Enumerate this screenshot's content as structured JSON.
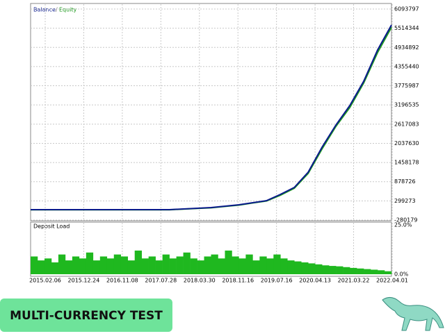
{
  "chart_data": [
    {
      "type": "line",
      "series": [
        {
          "name": "Equity",
          "color": "#1f9a1f",
          "values": [
            30000,
            30000,
            30000,
            30000,
            30000,
            30000,
            30000,
            30000,
            30000,
            30000,
            30000,
            50000,
            70000,
            90000,
            130000,
            170000,
            235000,
            295000,
            470000,
            680000,
            1130000,
            1870000,
            2550000,
            3120000,
            3860000,
            4780000,
            5540000
          ]
        },
        {
          "name": "Balance",
          "color": "#0a1a8c",
          "values": [
            34326,
            34326,
            34326,
            34326,
            34326,
            34326,
            34326,
            34326,
            34326,
            34326,
            34326,
            55293,
            76260,
            97227,
            139161,
            181095,
            243996,
            306897,
            495600,
            705270,
            1166544,
            1921356,
            2592300,
            3179376,
            3913221,
            4856736,
            5611548
          ]
        }
      ],
      "ylim": [
        -280179,
        6093797
      ],
      "yticks": [
        -280179,
        299273,
        878726,
        1458178,
        2037630,
        2617083,
        3196535,
        3775987,
        4355440,
        4934892,
        5514344,
        6093797
      ],
      "grid": true
    },
    {
      "type": "bar",
      "title": "Deposit Load",
      "color": "#1fb81f",
      "values": [
        9,
        7,
        8,
        6,
        10,
        7,
        9,
        8,
        11,
        7,
        9,
        8,
        10,
        9,
        7,
        12,
        8,
        9,
        7,
        10,
        8,
        9,
        11,
        8,
        7,
        9,
        10,
        8,
        12,
        9,
        8,
        10,
        7,
        9,
        8,
        10,
        8,
        7,
        6.5,
        6,
        5.5,
        5,
        4.5,
        4.2,
        4,
        3.6,
        3.2,
        2.9,
        2.6,
        2.3,
        2,
        1.5
      ],
      "ylim": [
        0,
        25
      ],
      "yticks": [
        {
          "value": 0,
          "label": "0.0%"
        },
        {
          "value": 25,
          "label": "25.0%"
        }
      ],
      "x_labels": [
        "2015.02.06",
        "2015.12.24",
        "2016.11.08",
        "2017.07.28",
        "2018.03.30",
        "2018.11.16",
        "2019.07.16",
        "2020.04.13",
        "2021.03.22",
        "2022.04.01"
      ],
      "grid": true
    }
  ],
  "badge": "MULTI-CURRENCY TEST"
}
